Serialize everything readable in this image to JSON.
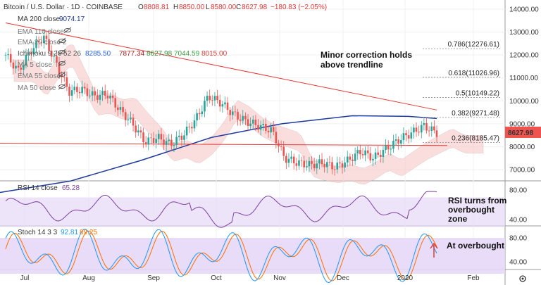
{
  "header": {
    "symbol": "Bitcoin / U.S. Dollar · 1D · COINBASE",
    "o_label": "O",
    "o_val": "8808.81",
    "h_label": "H",
    "h_val": "8850.00",
    "l_label": "L",
    "l_val": "8580.00",
    "c_label": "C",
    "c_val": "8627.98",
    "change": "−180.83 (−2.05%)"
  },
  "indicators": [
    {
      "name": "MA 200 close",
      "value": "9074.17",
      "value_color": "#1e3a9e"
    },
    {
      "name": "EMA 110 close",
      "value": ""
    },
    {
      "name": "EMA 20 close 2",
      "value": ""
    },
    {
      "name": "Ichimoku 9 26 52 26",
      "values": [
        "8285.50",
        "7877.34",
        "8627.98",
        "7044.59",
        "8015.00"
      ],
      "colors": [
        "#2962ff",
        "#b71c1c",
        "#388e3c",
        "#43a047",
        "#e53935"
      ]
    },
    {
      "name": "MA 5 close",
      "value": ""
    },
    {
      "name": "EMA 55 close",
      "value": ""
    },
    {
      "name": "MA 50 close",
      "value": ""
    }
  ],
  "price_axis": {
    "ticks": [
      "14000.00",
      "13000.00",
      "12000.00",
      "11000.00",
      "10000.00",
      "9000.00",
      "8000.00",
      "7000.00"
    ],
    "current": "8627.98"
  },
  "fib_levels": [
    {
      "label": "0.786(12276.61)",
      "price": 12276.61
    },
    {
      "label": "0.618(11026.96)",
      "price": 11026.96
    },
    {
      "label": "0.5(10149.22)",
      "price": 10149.22
    },
    {
      "label": "0.382(9271.48)",
      "price": 9271.48
    },
    {
      "label": "0.236(8185.47)",
      "price": 8185.47
    }
  ],
  "annotations": {
    "trendline_note": [
      "Minor correction holds",
      "above trendline"
    ],
    "rsi_note": [
      "RSI turns from",
      "overbought",
      "zone"
    ],
    "stoch_note": "At overbought"
  },
  "rsi": {
    "label": "RSI 14 close",
    "value": "65.28",
    "ticks": [
      "80.00",
      "40.00"
    ]
  },
  "stoch": {
    "label": "Stoch 14 3 3",
    "k": "92.81",
    "d": "89.25",
    "ticks": [
      "80.00",
      "40.00"
    ]
  },
  "time_axis": [
    "Jul",
    "Aug",
    "Sep",
    "Oct",
    "Nov",
    "Dec",
    "2020",
    "Feb"
  ],
  "colors": {
    "up": "#26a69a",
    "down": "#ef5350",
    "ma200": "#1e3a9e",
    "trend": "#e53935",
    "cloud_red": "#f8c9c9",
    "cloud_green": "#c8e6c9",
    "rsi": "#7e3fa1",
    "stoch_k": "#2196f3",
    "stoch_d": "#ff6d00",
    "band": "#e6d8f7"
  },
  "chart_data": {
    "type": "line",
    "title": "Bitcoin / U.S. Dollar · 1D · COINBASE",
    "x": [
      "Jul",
      "Aug",
      "Sep",
      "Oct",
      "Nov",
      "Dec",
      "2020",
      "Feb"
    ],
    "ylim": [
      6500,
      14500
    ],
    "series": [
      {
        "name": "MA 200 close",
        "values": [
          6000,
          6800,
          7700,
          8400,
          8900,
          9300,
          9300,
          9250
        ]
      }
    ],
    "close_path": [
      12000,
      11300,
      12200,
      12800,
      11600,
      10400,
      10500,
      10200,
      10300,
      9600,
      9000,
      8200,
      8400,
      8100,
      8500,
      9200,
      10200,
      9900,
      9400,
      9100,
      8900,
      8700,
      7500,
      7300,
      7200,
      7300,
      7100,
      7400,
      7800,
      7500,
      7900,
      8300,
      8600,
      8900,
      8600
    ],
    "current_price": 8627.98
  }
}
